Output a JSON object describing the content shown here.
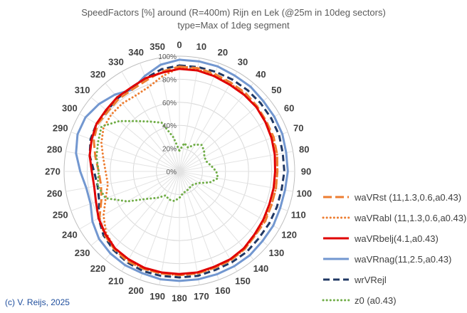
{
  "chart_data": {
    "type": "radar",
    "title": "SpeedFactors [%] around (R=400m) Rijn en Lek (@25m in 10deg sectors)",
    "subtitle": "type=Max of 1deg segment",
    "directions": [
      "0",
      "10",
      "20",
      "30",
      "40",
      "50",
      "60",
      "70",
      "80",
      "90",
      "100",
      "110",
      "120",
      "130",
      "140",
      "150",
      "160",
      "170",
      "180",
      "190",
      "200",
      "210",
      "220",
      "230",
      "240",
      "250",
      "260",
      "270",
      "280",
      "290",
      "300",
      "310",
      "320",
      "330",
      "340",
      "350"
    ],
    "radial_ticks": [
      "0%",
      "20%",
      "40%",
      "60%",
      "80%",
      "100%"
    ],
    "rlim": [
      0,
      100
    ],
    "series": [
      {
        "name": "waVRst (11,1.3,0.6,a0.43)",
        "color": "#ed7d31",
        "style": "longdash",
        "values": [
          91,
          91,
          90,
          89,
          89,
          88,
          87,
          87,
          86,
          85,
          85,
          85,
          86,
          86,
          88,
          89,
          89,
          90,
          90,
          90,
          90,
          90,
          88,
          85,
          80,
          72,
          69,
          70,
          74,
          79,
          82,
          81,
          82,
          82,
          84,
          88
        ]
      },
      {
        "name": "waVRabl (11,1.3,0.6,a0.43)",
        "color": "#ed7d31",
        "style": "dot",
        "values": [
          90,
          90,
          89,
          88,
          88,
          87,
          86,
          86,
          86,
          85,
          85,
          85,
          85,
          86,
          88,
          89,
          89,
          90,
          90,
          90,
          90,
          89,
          87,
          83,
          76,
          68,
          63,
          64,
          67,
          72,
          76,
          77,
          77,
          76,
          78,
          84
        ]
      },
      {
        "name": "waVRbelj(4.1,a0.43)",
        "color": "#e00000",
        "style": "solid",
        "values": [
          89,
          89,
          88,
          87,
          87,
          87,
          86,
          85,
          84,
          83,
          83,
          83,
          84,
          85,
          87,
          88,
          88,
          89,
          89,
          89,
          89,
          88,
          87,
          84,
          81,
          77,
          75,
          76,
          79,
          81,
          83,
          83,
          84,
          84,
          86,
          87
        ]
      },
      {
        "name": "waVRnag(11,2.5,a0.43)",
        "color": "#7297d0",
        "style": "solid",
        "values": [
          97,
          97,
          97,
          96,
          96,
          95,
          95,
          95,
          94,
          94,
          93,
          93,
          94,
          94,
          95,
          95,
          95,
          95,
          95,
          95,
          94,
          94,
          93,
          91,
          87,
          82,
          82,
          86,
          91,
          94,
          94,
          91,
          87,
          82,
          88,
          94
        ]
      },
      {
        "name": "wrVRejl",
        "color": "#203864",
        "style": "dash",
        "values": [
          92,
          92,
          92,
          92,
          92,
          92,
          92,
          92,
          91,
          91,
          90,
          90,
          90,
          90,
          91,
          91,
          91,
          92,
          92,
          92,
          92,
          91,
          89,
          86,
          81,
          74,
          72,
          74,
          79,
          82,
          83,
          82,
          83,
          84,
          86,
          90
        ]
      },
      {
        "name": "z0 (a0.43)",
        "color": "#70ad47",
        "style": "dot",
        "values": [
          18,
          25,
          22,
          27,
          30,
          28,
          25,
          25,
          28,
          32,
          34,
          28,
          20,
          17,
          16,
          17,
          18,
          19,
          23,
          26,
          26,
          24,
          30,
          37,
          52,
          68,
          72,
          70,
          73,
          75,
          78,
          68,
          57,
          50,
          45,
          30
        ]
      }
    ]
  },
  "credit": "(c) V. Reijs, 2025"
}
